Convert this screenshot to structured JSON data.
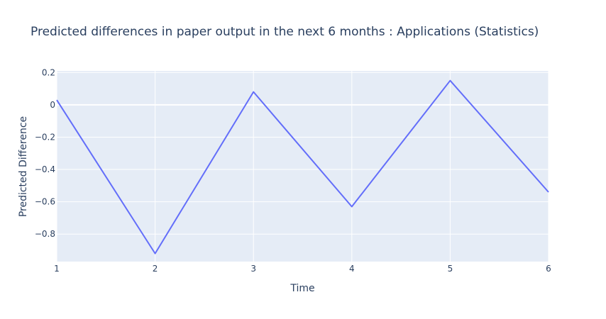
{
  "chart_data": {
    "type": "line",
    "title": "Predicted differences in paper output in the next 6 months : Applications (Statistics)",
    "xlabel": "Time",
    "ylabel": "Predicted Difference",
    "x": [
      1,
      2,
      3,
      4,
      5,
      6
    ],
    "series": [
      {
        "values": [
          0.03,
          -0.92,
          0.08,
          -0.63,
          0.15,
          -0.54
        ],
        "color": "#636efa"
      }
    ],
    "xlim": [
      1,
      6
    ],
    "ylim": [
      -0.97,
      0.21
    ],
    "xticks": [
      1,
      2,
      3,
      4,
      5,
      6
    ],
    "yticks": [
      0.2,
      0,
      -0.2,
      -0.4,
      -0.6,
      -0.8
    ],
    "ytick_labels": [
      "0.2",
      "0",
      "−0.2",
      "−0.4",
      "−0.6",
      "−0.8"
    ],
    "grid": true,
    "plot_bgcolor": "#e5ecf6",
    "gridcolor": "#ffffff"
  }
}
